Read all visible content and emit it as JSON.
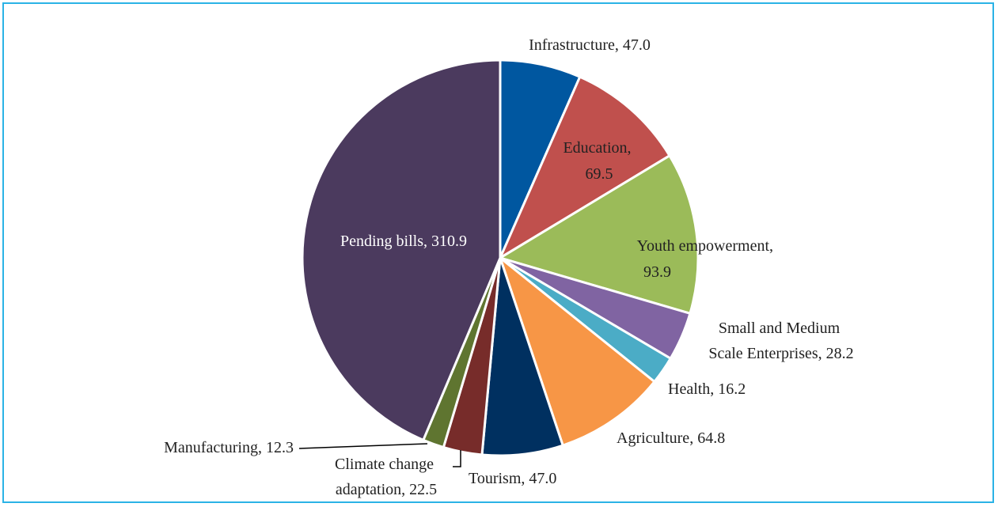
{
  "chart_data": {
    "type": "pie",
    "title": "",
    "start_angle_deg": 0,
    "direction": "clockwise",
    "slices": [
      {
        "label": "Infrastructure",
        "value": 47.0,
        "text": "Infrastructure, 47.0",
        "color": "#0057a0"
      },
      {
        "label": "Education",
        "value": 69.5,
        "text_lines": [
          "Education,",
          "69.5"
        ],
        "color": "#c0504d"
      },
      {
        "label": "Youth empowerment",
        "value": 93.9,
        "text_lines": [
          "Youth empowerment,",
          "93.9"
        ],
        "color": "#9bbb59"
      },
      {
        "label": "Small and Medium Scale Enterprises",
        "value": 28.2,
        "text_lines": [
          "Small and Medium",
          "Scale Enterprises, 28.2"
        ],
        "color": "#8064a2"
      },
      {
        "label": "Health",
        "value": 16.2,
        "text": "Health, 16.2",
        "color": "#4bacc6"
      },
      {
        "label": "Agriculture",
        "value": 64.8,
        "text": "Agriculture, 64.8",
        "color": "#f79646"
      },
      {
        "label": "Tourism",
        "value": 47.0,
        "text": "Tourism, 47.0",
        "color": "#003060"
      },
      {
        "label": "Climate change adaptation",
        "value": 22.5,
        "text_lines": [
          "Climate change",
          "adaptation, 22.5"
        ],
        "color": "#772c2a"
      },
      {
        "label": "Manufacturing",
        "value": 12.3,
        "text": "Manufacturing, 12.3",
        "color": "#5f7530"
      },
      {
        "label": "Pending bills",
        "value": 310.9,
        "text": "Pending bills, 310.9",
        "color": "#4b3a5e"
      }
    ]
  }
}
